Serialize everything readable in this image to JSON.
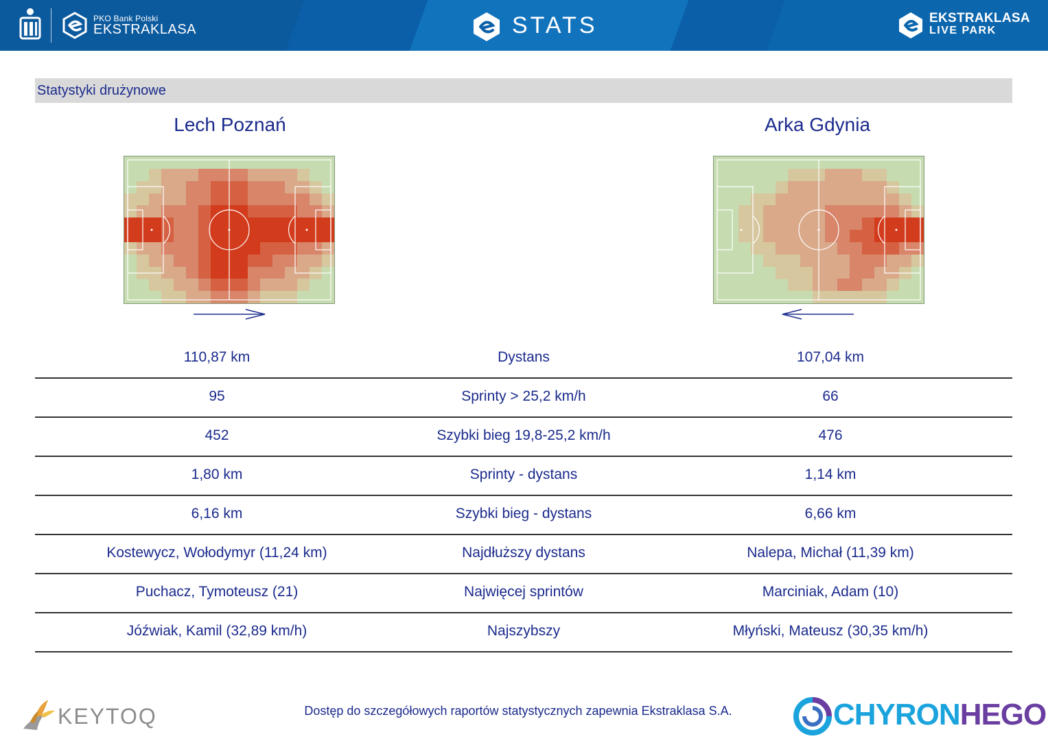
{
  "header": {
    "brand_small": "PKO Bank Polski",
    "brand_big": "EKSTRAKLASA",
    "title": "STATS",
    "live_top": "EKSTRAKLASA",
    "live_bottom": "LIVE PARK",
    "colors": {
      "background": "#0a5fa8",
      "text": "#ffffff"
    }
  },
  "section": {
    "title": "Statystyki drużynowe"
  },
  "teams": {
    "home": {
      "name": "Lech Poznań",
      "attack_direction": "right"
    },
    "away": {
      "name": "Arka Gdynia",
      "attack_direction": "left"
    }
  },
  "heatmap_colors": [
    "#c6dcb0",
    "#d6c79f",
    "#d9a98a",
    "#d8856a",
    "#d56042",
    "#d23b1c"
  ],
  "heatmaps": {
    "home": [
      "00000000000000000",
      "00122233332222100",
      "01122334443332210",
      "11222334443333321",
      "12233345554444332",
      "55543345555555555",
      "55543345555555555",
      "12233345555444332",
      "01223345554433221",
      "01122345553332210",
      "00112234443222100",
      "00011223332111000"
    ],
    "away": [
      "00000000000000000",
      "00000011122211000",
      "00000122222222100",
      "00011222222222210",
      "00112222233333321",
      "00112222233345555",
      "00112222233445555",
      "00011222223344433",
      "00001112222333221",
      "00000111222332210",
      "00000011223322100",
      "00000000111111000"
    ]
  },
  "stats": [
    {
      "label": "Dystans",
      "home": "110,87 km",
      "away": "107,04 km"
    },
    {
      "label": "Sprinty > 25,2 km/h",
      "home": "95",
      "away": "66"
    },
    {
      "label": "Szybki bieg 19,8-25,2 km/h",
      "home": "452",
      "away": "476"
    },
    {
      "label": "Sprinty - dystans",
      "home": "1,80 km",
      "away": "1,14 km"
    },
    {
      "label": "Szybki bieg - dystans",
      "home": "6,16 km",
      "away": "6,66 km"
    },
    {
      "label": "Najdłuższy dystans",
      "home": "Kostewycz, Wołodymyr (11,24 km)",
      "away": "Nalepa, Michał (11,39 km)"
    },
    {
      "label": "Najwięcej sprintów",
      "home": "Puchacz, Tymoteusz (21)",
      "away": "Marciniak, Adam (10)"
    },
    {
      "label": "Najszybszy",
      "home": "Jóźwiak, Kamil (32,89 km/h)",
      "away": "Młyński, Mateusz (30,35 km/h)"
    }
  ],
  "footer": {
    "keytoq": "KEYTOQ",
    "note": "Dostęp do szczegółowych raportów statystycznych zapewnia Ekstraklasa S.A.",
    "chyron_a": "CHYRON",
    "chyron_b": "HEGO"
  },
  "icons": {
    "pko": "pko-logo-icon",
    "ekstraklasa": "ekstraklasa-logo-icon",
    "stats": "stats-logo-icon",
    "live_park": "live-park-logo-icon",
    "keytoq": "keytoq-logo-icon",
    "chyron": "chyronhego-logo-icon"
  }
}
